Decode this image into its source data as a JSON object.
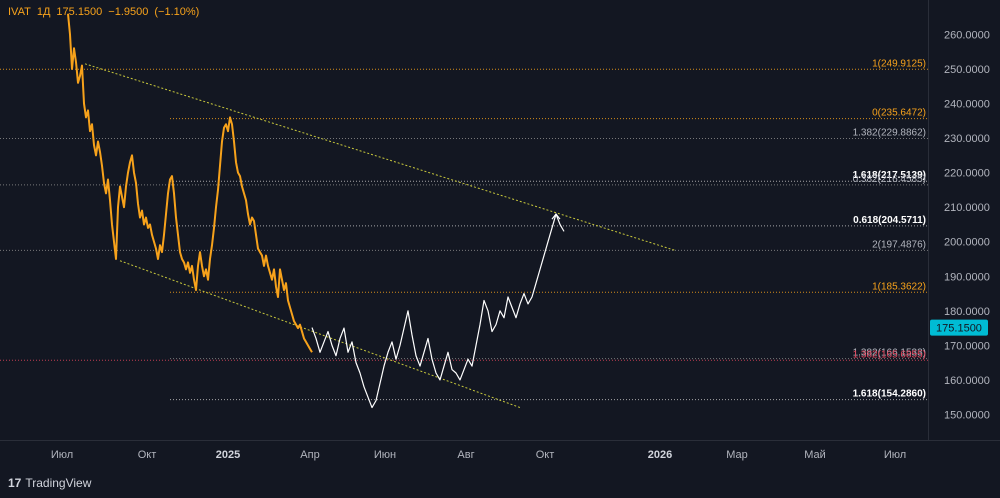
{
  "legend": {
    "symbol": "IVAT",
    "interval": "1Д",
    "close": "175.1500",
    "change": "−1.9500",
    "change_pct": "(−1.10%)"
  },
  "brand": {
    "logo_glyph": "17",
    "name": "TradingView"
  },
  "price_label": {
    "value": "175.1500",
    "color": "#00bcd4"
  },
  "y_axis": {
    "ticks": [
      "150.0000",
      "160.0000",
      "170.0000",
      "180.0000",
      "190.0000",
      "200.0000",
      "210.0000",
      "220.0000",
      "230.0000",
      "240.0000",
      "250.0000",
      "260.0000"
    ]
  },
  "x_axis": {
    "ticks": [
      "Июл",
      "Окт",
      "2025",
      "Апр",
      "Июн",
      "Авг",
      "Окт",
      "2026",
      "Мар",
      "Май",
      "Июл"
    ]
  },
  "chart_data": {
    "type": "line",
    "ylim": [
      145.5,
      266.5
    ],
    "xlim": [
      0,
      1000
    ],
    "grid": false,
    "colors": {
      "price": "#f7a21b",
      "projection": "#ffffff",
      "trendline": "#c8c83c",
      "level": "#8a8a8a",
      "level_orange": "#f7a21b",
      "level_red": "#e0455c"
    },
    "fib_levels": [
      {
        "label": "1(249.9125)",
        "value": 249.9125,
        "style": "orange"
      },
      {
        "label": "0(235.6472)",
        "value": 235.6472,
        "style": "orange"
      },
      {
        "label": "1.382(229.8862)",
        "value": 229.8862,
        "style": "gray"
      },
      {
        "label": "1.618(217.5139)",
        "value": 217.5139,
        "style": "white"
      },
      {
        "label": "0.382(216.4585)",
        "value": 216.4585,
        "style": "gray"
      },
      {
        "label": "0.618(204.5711)",
        "value": 204.5711,
        "style": "white"
      },
      {
        "label": "2(197.4876)",
        "value": 197.4876,
        "style": "gray"
      },
      {
        "label": "1(185.3622)",
        "value": 185.3622,
        "style": "orange"
      },
      {
        "label": "1.382(166.1533)",
        "value": 166.1533,
        "style": "gray"
      },
      {
        "label": "1.382(165.6855)",
        "value": 165.6855,
        "style": "red"
      },
      {
        "label": "1.618(154.2860)",
        "value": 154.286,
        "style": "white"
      }
    ],
    "series": [
      {
        "style": "price",
        "x": [
          68,
          70,
          72,
          74,
          76,
          78,
          80,
          82,
          84,
          86,
          88,
          90,
          92,
          94,
          96,
          98,
          100,
          102,
          104,
          106,
          108,
          110,
          112,
          114,
          116,
          118,
          120,
          122,
          124,
          126,
          128,
          130,
          132,
          134,
          136,
          138,
          140,
          142,
          144,
          146,
          148,
          150,
          152,
          154,
          156,
          158,
          160,
          162,
          164,
          166,
          168,
          170,
          172,
          174,
          176,
          178,
          180,
          182,
          184,
          186,
          188,
          190,
          192,
          194,
          196,
          198,
          200,
          202,
          204,
          206,
          208,
          210,
          212,
          214,
          216,
          218,
          220,
          222,
          224,
          226,
          228,
          230,
          232,
          234,
          236,
          238,
          240,
          242,
          244,
          246,
          248,
          250,
          252,
          254,
          256,
          258,
          260,
          262,
          264,
          266,
          268,
          270,
          272,
          274,
          276,
          278,
          280,
          282,
          284,
          286,
          288,
          290,
          292,
          294,
          296,
          298,
          300,
          302,
          304,
          306,
          308,
          310,
          312
        ],
        "y": [
          266,
          260,
          250,
          256,
          252,
          246,
          248,
          251,
          240,
          236,
          238,
          232,
          234,
          228,
          225,
          229,
          226,
          222,
          217,
          214,
          218,
          212,
          205,
          200,
          195,
          210,
          216,
          213,
          210,
          216,
          220,
          223,
          225,
          220,
          217,
          211,
          207,
          209,
          205,
          207,
          204,
          205,
          202,
          200,
          198,
          195,
          199,
          197,
          202,
          208,
          214,
          218,
          219,
          214,
          207,
          202,
          197,
          195,
          194,
          192,
          194,
          191,
          193,
          189,
          186,
          193,
          197,
          193,
          190,
          192,
          189,
          195,
          199,
          204,
          210,
          215,
          222,
          229,
          233,
          234,
          232,
          236,
          234,
          229,
          223,
          220,
          219,
          216,
          214,
          212,
          208,
          205,
          207,
          206,
          202,
          198,
          197,
          196,
          193,
          196,
          193,
          191,
          189,
          192,
          187,
          184,
          192,
          189,
          186,
          188,
          183,
          181,
          179,
          177,
          176,
          175,
          176,
          174,
          172,
          171,
          170,
          169,
          168
        ]
      },
      {
        "style": "projection",
        "x": [
          312,
          316,
          320,
          324,
          328,
          332,
          336,
          340,
          344,
          348,
          352,
          356,
          360,
          364,
          368,
          372,
          376,
          380,
          384,
          388,
          392,
          396,
          400,
          404,
          408,
          412,
          416,
          420,
          424,
          428,
          432,
          436,
          440,
          444,
          448,
          452,
          456,
          460,
          464,
          468,
          472,
          476,
          480,
          484,
          488,
          492,
          496,
          500,
          504,
          508,
          512,
          516,
          520,
          524,
          528,
          532,
          536,
          540,
          544,
          548,
          552,
          556,
          560,
          564
        ],
        "y": [
          175.15,
          172,
          168,
          171,
          174,
          170,
          167,
          172,
          175,
          168,
          171,
          165,
          162,
          158,
          155,
          152,
          154,
          159,
          164,
          168,
          171,
          166,
          170,
          175,
          180,
          173,
          167,
          164,
          168,
          172,
          166,
          162,
          160,
          164,
          168,
          163,
          162,
          160,
          163,
          166,
          164,
          170,
          176,
          183,
          180,
          174,
          176,
          180,
          178,
          184,
          181,
          178,
          182,
          185,
          182,
          184,
          188,
          192,
          196,
          200,
          204,
          208,
          205,
          203
        ]
      }
    ],
    "trendlines": [
      {
        "x": [
          85,
          675
        ],
        "y": [
          251.5,
          197.5
        ]
      },
      {
        "x": [
          120,
          520
        ],
        "y": [
          194.5,
          152.0
        ]
      }
    ]
  }
}
